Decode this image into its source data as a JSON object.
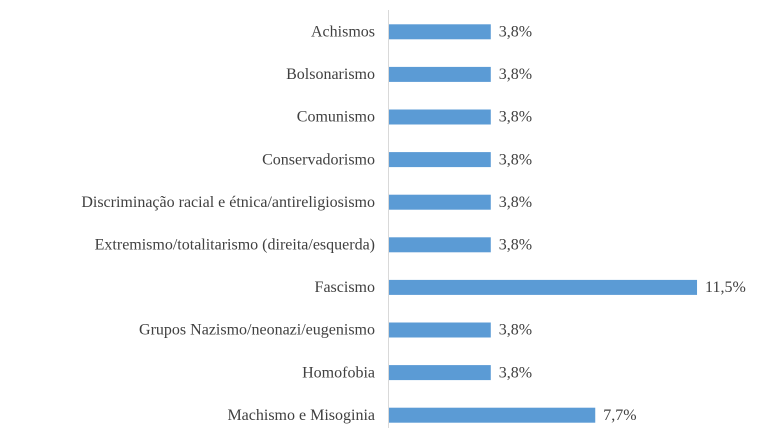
{
  "chart_data": {
    "type": "hbar",
    "categories": [
      "Achismos",
      "Bolsonarismo",
      "Comunismo",
      "Conservadorismo",
      "Discriminação racial e étnica/antireligiosismo",
      "Extremismo/totalitarismo (direita/esquerda)",
      "Fascismo",
      "Grupos Nazismo/neonazi/eugenismo",
      "Homofobia",
      "Machismo e Misoginia"
    ],
    "values": [
      3.8,
      3.8,
      3.8,
      3.8,
      3.8,
      3.8,
      11.5,
      3.8,
      3.8,
      7.7
    ],
    "value_labels": [
      "3,8%",
      "3,8%",
      "3,8%",
      "3,8%",
      "3,8%",
      "3,8%",
      "11,5%",
      "3,8%",
      "3,8%",
      "7,7%"
    ],
    "color": "#5b9bd5",
    "xlim": [
      0,
      14
    ]
  }
}
